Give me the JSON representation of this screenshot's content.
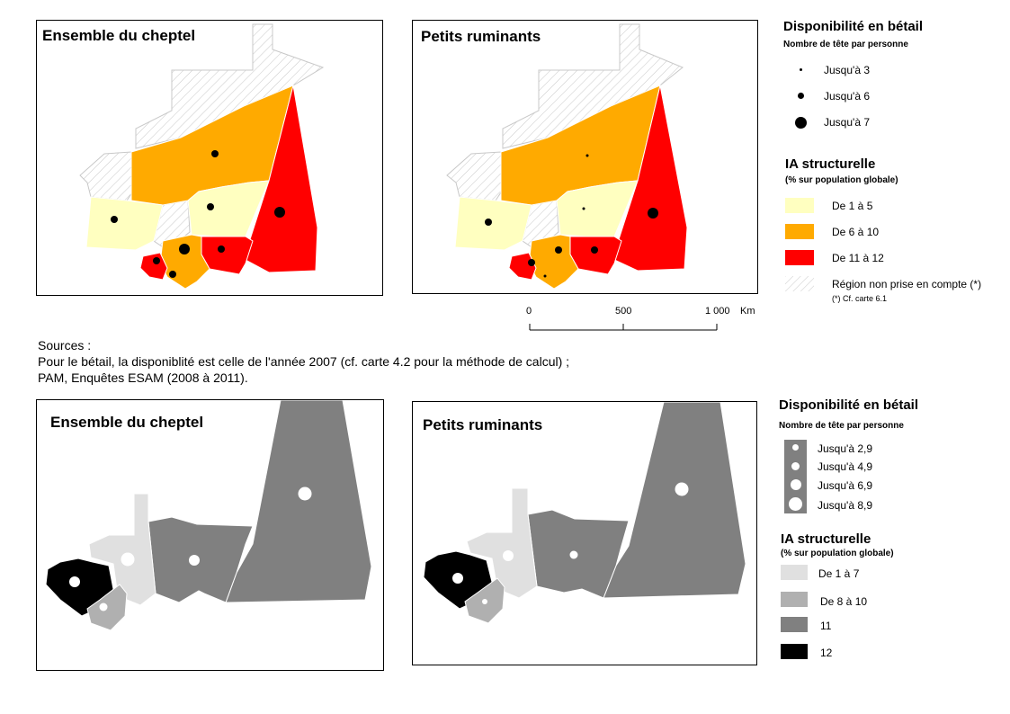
{
  "colors": {
    "ia_low": "#ffffc0",
    "ia_mid": "#ffaa00",
    "ia_high": "#ff0000",
    "hatch": "#c8c8c8",
    "gray_1": "#e0e0e0",
    "gray_2": "#b0b0b0",
    "gray_3": "#808080",
    "gray_4": "#000000"
  },
  "top": {
    "map1_title": "Ensemble du cheptel",
    "map2_title": "Petits ruminants",
    "legend": {
      "title": "Disponibilité en bétail",
      "subtitle": "Nombre de tête par personne",
      "dots": [
        "Jusqu'à 3",
        "Jusqu'à 6",
        "Jusqu'à 7"
      ],
      "ia_title": "IA structurelle",
      "ia_subtitle": "(% sur population globale)",
      "classes": [
        "De 1 à 5",
        "De 6 à 10",
        "De 11 à 12",
        "Région non prise en compte (*)"
      ],
      "footnote": "(*) Cf. carte 6.1"
    },
    "scale": {
      "labels": [
        "0",
        "500",
        "1 000"
      ],
      "unit": "Km"
    }
  },
  "sources": [
    "Sources :",
    "Pour le bétail, la disponiblité est celle de l'année 2007 (cf. carte 4.2 pour la méthode de calcul) ;",
    "PAM, Enquêtes ESAM (2008 à 2011)."
  ],
  "bottom": {
    "map1_title": "Ensemble du cheptel",
    "map2_title": "Petits ruminants",
    "legend": {
      "title": "Disponibilité en bétail",
      "subtitle": "Nombre de tête par personne",
      "dots": [
        "Jusqu'à 2,9",
        "Jusqu'à 4,9",
        "Jusqu'à 6,9",
        "Jusqu'à 8,9"
      ],
      "ia_title": "IA structurelle",
      "ia_subtitle": "(% sur population globale)",
      "classes": [
        "De 1 à 7",
        "De 8 à 10",
        "11",
        "12"
      ]
    }
  }
}
